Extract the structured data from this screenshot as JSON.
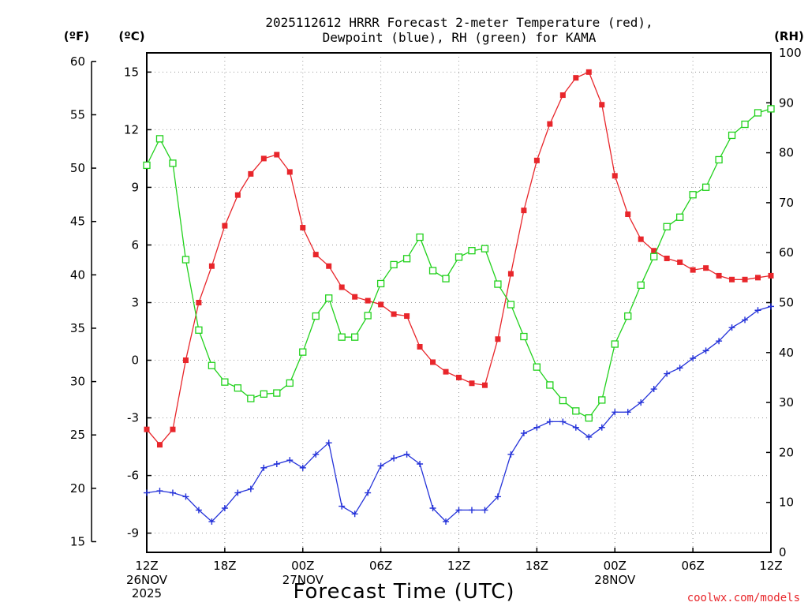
{
  "chart_data": {
    "type": "line",
    "title": "2025112612 HRRR Forecast 2-meter Temperature (red),",
    "subtitle": "Dewpoint (blue), RH (green) for KAMA",
    "left_axis_fahrenheit": {
      "unit_label": "(ºF)",
      "ticks": [
        15,
        20,
        25,
        30,
        35,
        40,
        45,
        50,
        55,
        60
      ]
    },
    "left_axis_celsius": {
      "unit_label": "(ºC)",
      "range": [
        -10,
        16
      ],
      "ticks": [
        -9,
        -6,
        -3,
        0,
        3,
        6,
        9,
        12,
        15
      ]
    },
    "right_axis_rh": {
      "unit_label": "(RH)",
      "range": [
        0,
        100
      ],
      "ticks": [
        0,
        10,
        20,
        30,
        40,
        50,
        60,
        70,
        80,
        90,
        100
      ]
    },
    "xlabel": "Forecast Time (UTC)",
    "x_range_hours": [
      0,
      48
    ],
    "x_ticks": [
      {
        "hour": 0,
        "label": "12Z",
        "date": "26NOV",
        "year": "2025"
      },
      {
        "hour": 6,
        "label": "18Z",
        "date": "",
        "year": ""
      },
      {
        "hour": 12,
        "label": "00Z",
        "date": "27NOV",
        "year": ""
      },
      {
        "hour": 18,
        "label": "06Z",
        "date": "",
        "year": ""
      },
      {
        "hour": 24,
        "label": "12Z",
        "date": "",
        "year": ""
      },
      {
        "hour": 30,
        "label": "18Z",
        "date": "",
        "year": ""
      },
      {
        "hour": 36,
        "label": "00Z",
        "date": "28NOV",
        "year": ""
      },
      {
        "hour": 42,
        "label": "06Z",
        "date": "",
        "year": ""
      },
      {
        "hour": 48,
        "label": "12Z",
        "date": "",
        "year": ""
      }
    ],
    "grid": true,
    "credit": "coolwx.com/models",
    "series": [
      {
        "name": "Temperature (°C)",
        "color": "#e8262b",
        "axis": "celsius",
        "marker": "filled-square",
        "values": [
          -3.6,
          -4.4,
          -3.6,
          0.0,
          3.0,
          4.9,
          7.0,
          8.6,
          9.7,
          10.5,
          10.7,
          9.8,
          6.9,
          5.5,
          4.9,
          3.8,
          3.3,
          3.1,
          2.9,
          2.4,
          2.3,
          0.7,
          -0.1,
          -0.6,
          -0.9,
          -1.2,
          -1.3,
          1.1,
          4.5,
          7.8,
          10.4,
          12.3,
          13.8,
          14.7,
          15.0,
          13.3,
          9.6,
          7.6,
          6.3,
          5.7,
          5.3,
          5.1,
          4.7,
          4.8,
          4.4,
          4.2,
          4.2,
          4.3,
          4.4
        ]
      },
      {
        "name": "Dewpoint (°C)",
        "color": "#2432d9",
        "axis": "celsius",
        "marker": "plus",
        "values": [
          -6.9,
          -6.8,
          -6.9,
          -7.1,
          -7.8,
          -8.4,
          -7.7,
          -6.9,
          -6.7,
          -5.6,
          -5.4,
          -5.2,
          -5.6,
          -4.9,
          -4.3,
          -7.6,
          -8.0,
          -6.9,
          -5.5,
          -5.1,
          -4.9,
          -5.4,
          -7.7,
          -8.4,
          -7.8,
          -7.8,
          -7.8,
          -7.1,
          -4.9,
          -3.8,
          -3.5,
          -3.2,
          -3.2,
          -3.5,
          -4.0,
          -3.5,
          -2.7,
          -2.7,
          -2.2,
          -1.5,
          -0.7,
          -0.4,
          0.1,
          0.5,
          1.0,
          1.7,
          2.1,
          2.6,
          2.8
        ]
      },
      {
        "name": "RH (%)",
        "color": "#21d11c",
        "axis": "rh",
        "marker": "open-square",
        "values": [
          77.5,
          82.8,
          77.9,
          58.6,
          44.5,
          37.4,
          34.1,
          32.9,
          30.8,
          31.7,
          31.9,
          33.9,
          40.1,
          47.3,
          50.9,
          43.1,
          43.1,
          47.4,
          53.8,
          57.6,
          58.8,
          63.1,
          56.4,
          54.8,
          59.1,
          60.4,
          60.8,
          53.7,
          49.6,
          43.2,
          37.1,
          33.5,
          30.4,
          28.3,
          26.9,
          30.5,
          41.7,
          47.3,
          53.5,
          59.2,
          65.2,
          67.1,
          71.6,
          73.1,
          78.6,
          83.5,
          85.7,
          88.0,
          88.8
        ]
      }
    ]
  }
}
